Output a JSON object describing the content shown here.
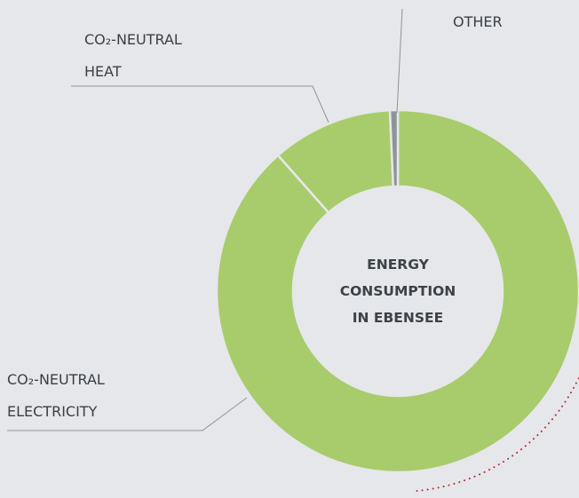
{
  "chart_data": {
    "type": "donut",
    "title": [
      "ENERGY",
      "CONSUMPTION",
      "IN EBENSEE"
    ],
    "categories": [
      "CO₂-NEUTRAL ELECTRICITY",
      "CO₂-NEUTRAL HEAT",
      "OTHER"
    ],
    "values": [
      88.5,
      10.8,
      0.7
    ],
    "colors": [
      "#a8cc6c",
      "#a8cc6c",
      "#8c949b"
    ]
  }
}
